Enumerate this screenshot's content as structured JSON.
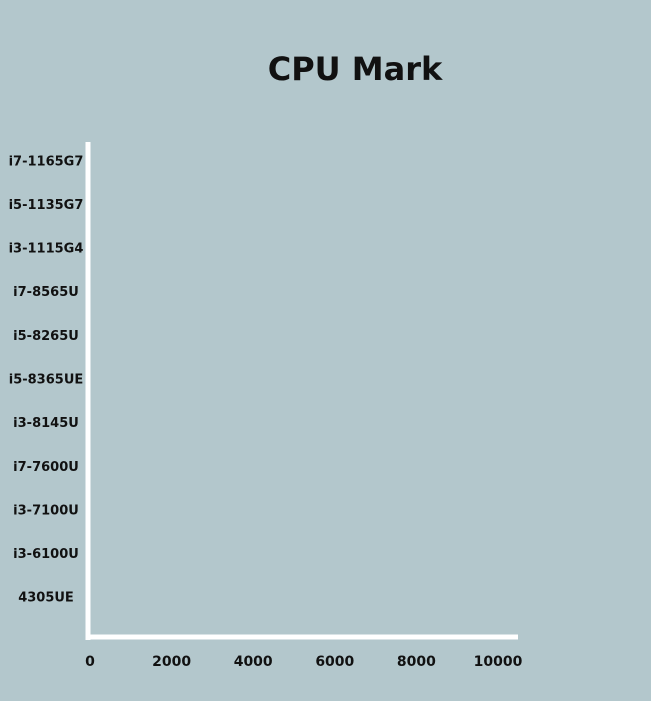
{
  "chart_data": {
    "type": "bar",
    "orientation": "horizontal",
    "title": "CPU Mark",
    "categories": [
      "i7-1165G7",
      "i5-1135G7",
      "i3-1115G4",
      "i7-8565U",
      "i5-8265U",
      "i5-8365UE",
      "i3-8145U",
      "i7-7600U",
      "i3-7100U",
      "i3-6100U",
      "4305UE"
    ],
    "xlim": [
      0,
      10000
    ],
    "xticks": [
      0,
      2000,
      4000,
      6000,
      8000,
      10000
    ]
  }
}
